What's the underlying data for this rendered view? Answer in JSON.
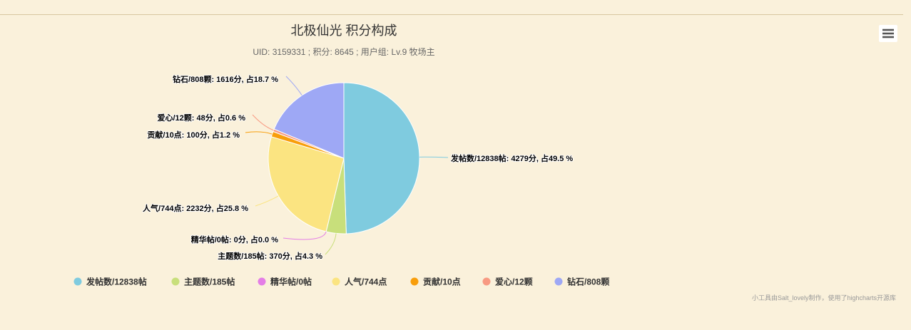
{
  "theme": {
    "background": "#faf1db",
    "divider": "#d8c6a0"
  },
  "chart_data": {
    "type": "pie",
    "title": "北极仙光 积分构成",
    "subtitle": "UID: 3159331 ; 积分: 8645 ; 用户组: Lv.9 牧场主",
    "categories": [
      "发帖数/12838帖",
      "主题数/185帖",
      "精华帖/0帖",
      "人气/744点",
      "贡献/10点",
      "爱心/12颗",
      "钻石/808颗"
    ],
    "values": [
      4279,
      370,
      0,
      2232,
      100,
      48,
      1616
    ],
    "percents": [
      49.5,
      4.3,
      0.0,
      25.8,
      1.2,
      0.6,
      18.7
    ],
    "colors": [
      "#7fcbdf",
      "#c8df7b",
      "#e47ee6",
      "#fbe481",
      "#f89e0b",
      "#f89a82",
      "#9ea8f5"
    ],
    "data_labels": [
      "发帖数/12838帖: 4279分, 占49.5 %",
      "主题数/185帖: 370分, 占4.3 %",
      "精华帖/0帖: 0分, 占0.0 %",
      "人气/744点: 2232分, 占25.8 %",
      "贡献/10点: 100分, 占1.2 %",
      "爱心/12颗: 48分, 占0.6 %",
      "钻石/808颗: 1616分, 占18.7 %"
    ]
  },
  "export_menu": {
    "icon": "menu-icon"
  },
  "credits": {
    "text": "小工具由Salt_lovely制作，使用了highcharts开源库"
  }
}
